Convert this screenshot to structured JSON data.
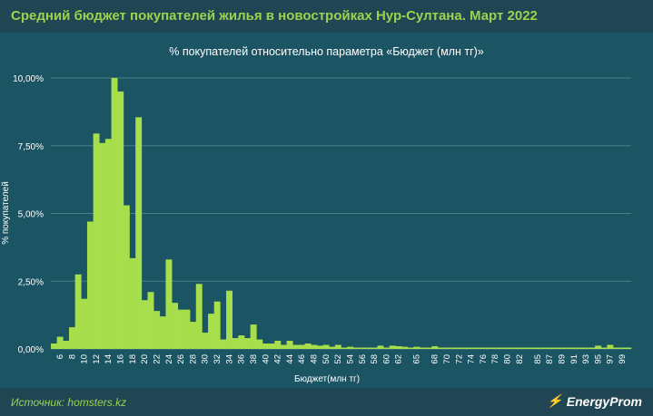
{
  "header": {
    "title": "Средний бюджет покупателей жилья в новостройках Нур-Султана. Март 2022"
  },
  "footer": {
    "source": "Источник: homsters.kz",
    "brand": "EnergyProm"
  },
  "colors": {
    "bar": "#a6df4b",
    "background": "#1b5463",
    "title": "#9bd24f",
    "grid": "#4a7f8c"
  },
  "chart_data": {
    "type": "bar",
    "title": "% покупателей относительно параметра «Бюджет (млн тг)»",
    "xlabel": "Бюджет(млн тг)",
    "ylabel": "% покупателей",
    "ylim": [
      0,
      10
    ],
    "yticks": [
      "0,00%",
      "2,50%",
      "5,00%",
      "7,50%",
      "10,00%"
    ],
    "grid": true,
    "legend": "none",
    "categories": [
      5,
      6,
      7,
      8,
      9,
      10,
      11,
      12,
      13,
      14,
      15,
      16,
      17,
      18,
      19,
      20,
      21,
      22,
      23,
      24,
      25,
      26,
      27,
      28,
      29,
      30,
      31,
      32,
      33,
      34,
      35,
      36,
      37,
      38,
      39,
      40,
      41,
      42,
      43,
      44,
      45,
      46,
      47,
      48,
      49,
      50,
      51,
      52,
      53,
      54,
      55,
      56,
      57,
      58,
      59,
      60,
      61,
      62,
      63,
      64,
      65,
      66,
      67,
      68,
      69,
      70,
      71,
      72,
      73,
      74,
      75,
      76,
      77,
      78,
      79,
      80,
      81,
      82,
      83,
      84,
      85,
      86,
      87,
      88,
      89,
      90,
      91,
      92,
      93,
      94,
      95,
      96,
      97,
      98,
      99,
      100
    ],
    "tick_labels": [
      "6",
      "8",
      "10",
      "12",
      "14",
      "16",
      "18",
      "20",
      "22",
      "24",
      "26",
      "28",
      "30",
      "32",
      "34",
      "36",
      "38",
      "40",
      "42",
      "44",
      "46",
      "48",
      "50",
      "52",
      "54",
      "56",
      "58",
      "60",
      "62",
      "65",
      "68",
      "70",
      "72",
      "74",
      "76",
      "78",
      "80",
      "82",
      "85",
      "87",
      "89",
      "91",
      "93",
      "95",
      "97",
      "99"
    ],
    "values": [
      0.2,
      0.45,
      0.3,
      0.8,
      2.75,
      1.85,
      4.7,
      7.95,
      7.6,
      7.75,
      10.0,
      9.5,
      5.3,
      3.35,
      8.55,
      1.8,
      2.1,
      1.4,
      1.2,
      3.3,
      1.7,
      1.45,
      1.45,
      1.0,
      2.4,
      0.6,
      1.3,
      1.75,
      0.35,
      2.15,
      0.4,
      0.5,
      0.4,
      0.9,
      0.35,
      0.2,
      0.2,
      0.3,
      0.15,
      0.3,
      0.15,
      0.15,
      0.2,
      0.15,
      0.12,
      0.15,
      0.08,
      0.15,
      0.05,
      0.08,
      0.05,
      0.05,
      0.05,
      0.05,
      0.12,
      0.05,
      0.12,
      0.1,
      0.08,
      0.05,
      0.08,
      0.05,
      0.05,
      0.1,
      0.05,
      0.05,
      0.05,
      0.05,
      0.05,
      0.05,
      0.05,
      0.05,
      0.05,
      0.05,
      0.05,
      0.05,
      0.05,
      0.05,
      0.05,
      0.05,
      0.05,
      0.05,
      0.05,
      0.05,
      0.05,
      0.05,
      0.05,
      0.05,
      0.05,
      0.05,
      0.12,
      0.05,
      0.15,
      0.05,
      0.05,
      0.05
    ]
  }
}
